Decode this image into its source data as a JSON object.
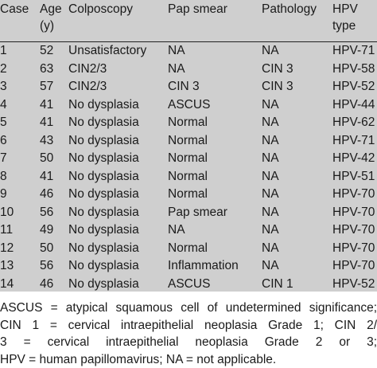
{
  "table": {
    "headers": [
      [
        "Case",
        ""
      ],
      [
        "Age",
        "(y)"
      ],
      [
        "Colposcopy",
        ""
      ],
      [
        "Pap smear",
        ""
      ],
      [
        "Pathology",
        ""
      ],
      [
        "HPV",
        "type"
      ]
    ],
    "rows": [
      [
        "1",
        "52",
        "Unsatisfactory",
        "NA",
        "NA",
        "HPV-71"
      ],
      [
        "2",
        "63",
        "CIN2/3",
        "NA",
        "CIN 3",
        "HPV-58"
      ],
      [
        "3",
        "57",
        "CIN2/3",
        "CIN 3",
        "CIN 3",
        "HPV-52"
      ],
      [
        "4",
        "41",
        "No dysplasia",
        "ASCUS",
        "NA",
        "HPV-44"
      ],
      [
        "5",
        "41",
        "No dysplasia",
        "Normal",
        "NA",
        "HPV-62"
      ],
      [
        "6",
        "43",
        "No dysplasia",
        "Normal",
        "NA",
        "HPV-71"
      ],
      [
        "7",
        "50",
        "No dysplasia",
        "Normal",
        "NA",
        "HPV-42"
      ],
      [
        "8",
        "41",
        "No dysplasia",
        "Normal",
        "NA",
        "HPV-51"
      ],
      [
        "9",
        "46",
        "No dysplasia",
        "Normal",
        "NA",
        "HPV-70"
      ],
      [
        "10",
        "56",
        "No dysplasia",
        "Pap smear",
        "NA",
        "HPV-70"
      ],
      [
        "11",
        "49",
        "No dysplasia",
        "NA",
        "NA",
        "HPV-70"
      ],
      [
        "12",
        "50",
        "No dysplasia",
        "Normal",
        "NA",
        "HPV-70"
      ],
      [
        "13",
        "56",
        "No dysplasia",
        "Inflammation",
        "NA",
        "HPV-70"
      ],
      [
        "14",
        "46",
        "No dysplasia",
        "ASCUS",
        "CIN 1",
        "HPV-52"
      ]
    ]
  },
  "footnote": {
    "lines": [
      "ASCUS = atypical squamous cell of undetermined significance;",
      "CIN 1 = cervical intraepithelial neoplasia Grade 1; CIN 2/",
      "3 = cervical intraepithelial neoplasia Grade 2 or 3;",
      "HPV = human papillomavirus; NA = not applicable."
    ]
  }
}
